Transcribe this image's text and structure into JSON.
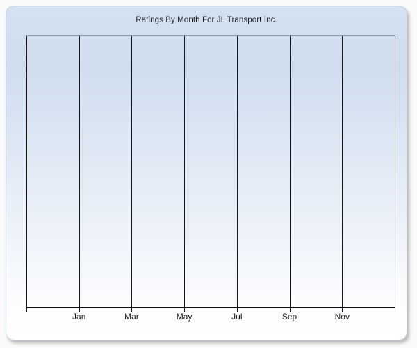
{
  "panel": {
    "title": "Ratings By Month For JL Transport Inc."
  },
  "chart_data": {
    "type": "line",
    "title": "Ratings By Month For JL Transport Inc.",
    "categories": [
      "Jan",
      "Mar",
      "May",
      "Jul",
      "Sep",
      "Nov"
    ],
    "series": [],
    "x_gridline_count": 8,
    "xlabel": "",
    "ylabel": "",
    "y_tick_labels": [],
    "legend": "none",
    "grid": "vertical-only",
    "plot_area_empty": true,
    "x_labels_on_alternate_gridlines": true
  },
  "colors": {
    "page_background": "#fafafa",
    "panel_gradient_top": "#d4e1f1",
    "panel_gradient_bottom": "#ffffff",
    "panel_border": "#c3cddc",
    "plot_top_border": "#8e9aab",
    "gridline": "#15161a",
    "axis_line": "#121317",
    "title_text": "#1d2126",
    "label_text": "#17191c"
  }
}
